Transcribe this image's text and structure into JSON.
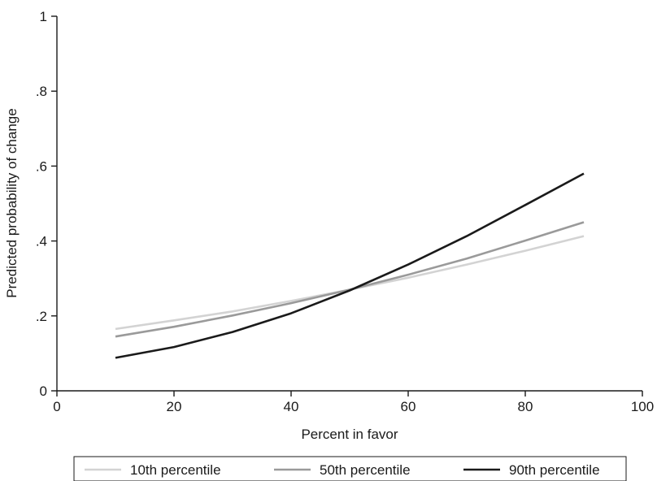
{
  "chart_data": {
    "type": "line",
    "xlabel": "Percent in favor",
    "ylabel": "Predicted probability of change",
    "xlim": [
      0,
      100
    ],
    "ylim": [
      0,
      1
    ],
    "x_ticks": [
      0,
      20,
      40,
      60,
      80,
      100
    ],
    "x_tick_labels": [
      "0",
      "20",
      "40",
      "60",
      "80",
      "100"
    ],
    "y_ticks": [
      0,
      0.2,
      0.4,
      0.6,
      0.8,
      1
    ],
    "y_tick_labels": [
      "0",
      ".2",
      ".4",
      ".6",
      ".8",
      "1"
    ],
    "grid": false,
    "legend_position": "bottom",
    "x": [
      10,
      20,
      30,
      40,
      50,
      60,
      70,
      80,
      90
    ],
    "series": [
      {
        "name": "10th percentile",
        "color": "#d3d3d3",
        "values": [
          0.165,
          0.188,
          0.212,
          0.24,
          0.27,
          0.302,
          0.337,
          0.374,
          0.413
        ]
      },
      {
        "name": "50th percentile",
        "color": "#9a9a9a",
        "values": [
          0.145,
          0.171,
          0.201,
          0.234,
          0.27,
          0.31,
          0.353,
          0.401,
          0.45
        ]
      },
      {
        "name": "90th percentile",
        "color": "#1a1a1a",
        "values": [
          0.088,
          0.117,
          0.157,
          0.207,
          0.268,
          0.337,
          0.413,
          0.496,
          0.58
        ]
      }
    ]
  }
}
